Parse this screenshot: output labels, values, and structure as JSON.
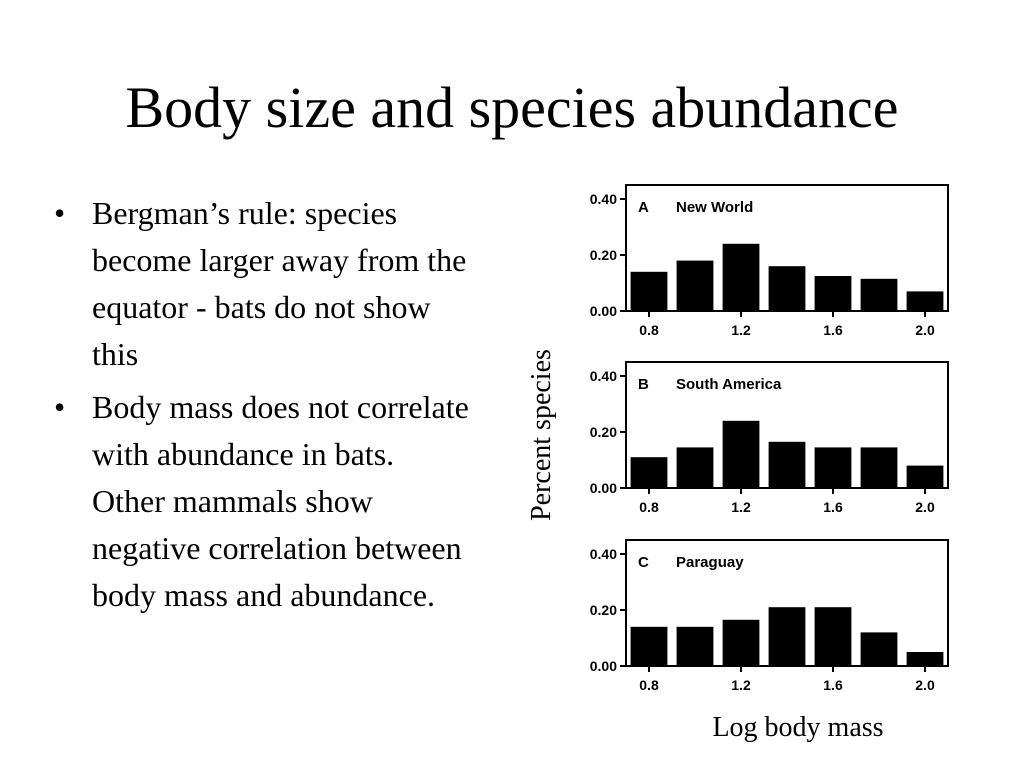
{
  "slide": {
    "title": "Body size and species abundance",
    "bullets": [
      "Bergman’s rule: species become larger away from the equator - bats do not show this",
      "Body mass does not correlate with abundance in bats. Other mammals show negative correlation between body mass and abundance."
    ],
    "bullet_glyph": "•"
  },
  "chart_data": [
    {
      "type": "bar",
      "panel": "A",
      "title": "New World",
      "x": [
        0.8,
        1.0,
        1.2,
        1.4,
        1.6,
        1.8,
        2.0
      ],
      "values": [
        0.14,
        0.18,
        0.24,
        0.16,
        0.125,
        0.115,
        0.07
      ],
      "xticks": [
        "0.8",
        "1.2",
        "1.6",
        "2.0"
      ],
      "yticks": [
        "0.40",
        "0.20",
        "0.00"
      ],
      "ylim": [
        0,
        0.45
      ],
      "xlabel": "Log body mass",
      "ylabel": "Percent species"
    },
    {
      "type": "bar",
      "panel": "B",
      "title": "South America",
      "x": [
        0.8,
        1.0,
        1.2,
        1.4,
        1.6,
        1.8,
        2.0
      ],
      "values": [
        0.11,
        0.145,
        0.24,
        0.165,
        0.145,
        0.145,
        0.08
      ],
      "xticks": [
        "0.8",
        "1.2",
        "1.6",
        "2.0"
      ],
      "yticks": [
        "0.40",
        "0.20",
        "0.00"
      ],
      "ylim": [
        0,
        0.45
      ],
      "xlabel": "Log body mass",
      "ylabel": "Percent species"
    },
    {
      "type": "bar",
      "panel": "C",
      "title": "Paraguay",
      "x": [
        0.8,
        1.0,
        1.2,
        1.4,
        1.6,
        1.8,
        2.0
      ],
      "values": [
        0.14,
        0.14,
        0.165,
        0.21,
        0.21,
        0.12,
        0.05
      ],
      "xticks": [
        "0.8",
        "1.2",
        "1.6",
        "2.0"
      ],
      "yticks": [
        "0.40",
        "0.20",
        "0.00"
      ],
      "ylim": [
        0,
        0.45
      ],
      "xlabel": "Log body mass",
      "ylabel": "Percent species"
    }
  ],
  "colors": {
    "bar": "#000000",
    "axis": "#000000",
    "background": "#ffffff"
  }
}
